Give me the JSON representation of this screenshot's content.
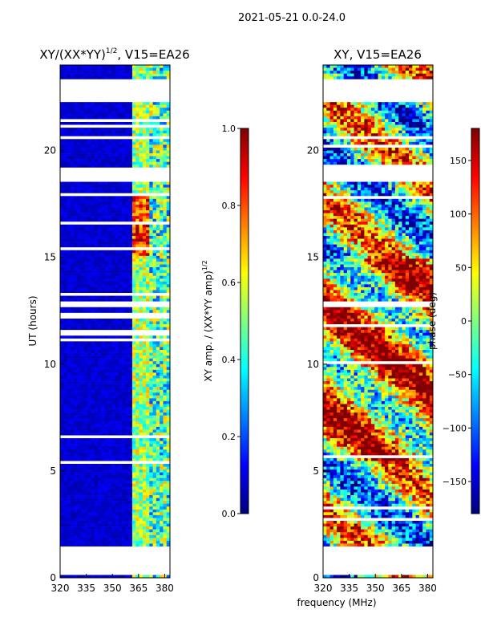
{
  "figure": {
    "suptitle": "2021-05-21 0.0-24.0",
    "shared_xlabel": "frequency (MHz)"
  },
  "chart_data": [
    {
      "type": "heatmap",
      "title_main": "XY/(XX*YY)",
      "title_exp": "1/2",
      "title_tail": ", V15=EA26",
      "xlabel": "frequency (MHz)",
      "ylabel": "UT (hours)",
      "xlim": [
        320,
        383
      ],
      "ylim": [
        0,
        24
      ],
      "xticks": [
        320,
        335,
        350,
        365,
        380
      ],
      "yticks": [
        0,
        5,
        10,
        15,
        20
      ],
      "colormap": "jet",
      "colorbar": {
        "label_main": "XY amp. / (XX*YY amp)",
        "label_exp": "1/2",
        "range": [
          0.0,
          1.0
        ],
        "ticks": [
          "0.0",
          "0.2",
          "0.4",
          "0.6",
          "0.8",
          "1.0"
        ],
        "tick_values": [
          0.0,
          0.2,
          0.4,
          0.6,
          0.8,
          1.0
        ]
      }
    },
    {
      "type": "heatmap",
      "title": "XY, V15=EA26",
      "xlabel": "frequency (MHz)",
      "ylabel": "",
      "xlim": [
        320,
        383
      ],
      "ylim": [
        0,
        24
      ],
      "xticks": [
        320,
        335,
        350,
        365,
        380
      ],
      "yticks": [
        0,
        5,
        10,
        15,
        20
      ],
      "colormap": "jet",
      "colorbar": {
        "label": "phase (deg)",
        "range": [
          -180,
          180
        ],
        "ticks": [
          "150",
          "100",
          "50",
          "0",
          "−50",
          "−100",
          "−150"
        ],
        "tick_values": [
          150,
          100,
          50,
          0,
          -50,
          -100,
          -150
        ]
      }
    }
  ],
  "data_gaps_hours": [
    [
      0.1,
      1.4
    ],
    [
      18.5,
      19.2
    ],
    [
      12.6,
      13.0
    ],
    [
      22.2,
      23.3
    ]
  ]
}
